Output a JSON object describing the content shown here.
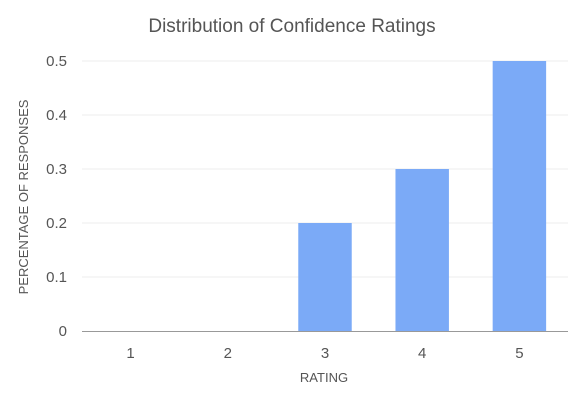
{
  "chart_data": {
    "type": "bar",
    "title": "Distribution of Confidence Ratings",
    "xlabel": "RATING",
    "ylabel": "PERCENTAGE OF RESPONSES",
    "categories": [
      "1",
      "2",
      "3",
      "4",
      "5"
    ],
    "values": [
      0,
      0,
      0.2,
      0.3,
      0.5
    ],
    "ylim": [
      0,
      0.5
    ],
    "yticks": [
      "0",
      "0.1",
      "0.2",
      "0.3",
      "0.4",
      "0.5"
    ],
    "grid": true,
    "legend": "none",
    "bar_color": "#7BAAF7"
  }
}
